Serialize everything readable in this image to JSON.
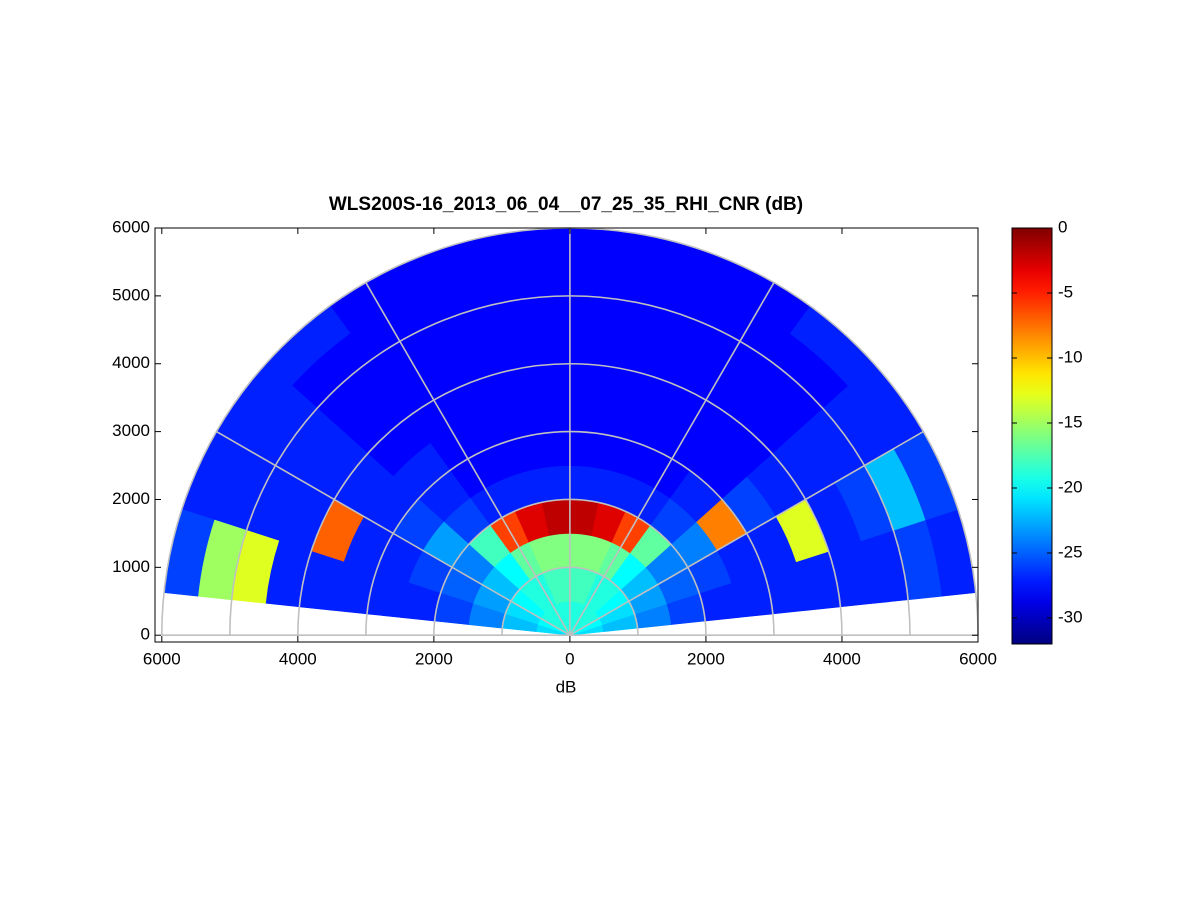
{
  "chart_data": {
    "type": "polar_heatmap",
    "title": "WLS200S-16_2013_06_04__07_25_35_RHI_CNR (dB)",
    "xlabel": "dB",
    "xlim": [
      -6100,
      6000
    ],
    "ylim": [
      -100,
      6000
    ],
    "xticks": [
      {
        "value": -6000,
        "label": "6000"
      },
      {
        "value": -4000,
        "label": "4000"
      },
      {
        "value": -2000,
        "label": "2000"
      },
      0,
      2000,
      4000,
      6000
    ],
    "yticks": [
      0,
      1000,
      2000,
      3000,
      4000,
      5000,
      6000
    ],
    "range_edges": [
      0,
      500,
      1000,
      1500,
      2000,
      2500,
      3000,
      3500,
      4000,
      4500,
      5000,
      5500,
      6000
    ],
    "angle_edges": [
      6,
      18,
      30,
      42,
      54,
      66,
      78,
      90,
      102,
      114,
      126,
      138,
      150,
      162,
      174
    ],
    "values": [
      [
        -21,
        -20,
        -19,
        -19,
        -19,
        -19,
        -19,
        -19,
        -19,
        -19,
        -19,
        -19,
        -20,
        -21
      ],
      [
        -22,
        -21,
        -20,
        -19,
        -19,
        -18,
        -18,
        -18,
        -18,
        -19,
        -19,
        -20,
        -21,
        -22
      ],
      [
        -24,
        -23,
        -22,
        -20,
        -17,
        -16,
        -16,
        -16,
        -16,
        -17,
        -20,
        -22,
        -23,
        -24
      ],
      [
        -26,
        -25,
        -24,
        -17,
        -6,
        -3,
        -2,
        -2,
        -3,
        -6,
        -18,
        -24,
        -25,
        -26
      ],
      [
        -27,
        -26,
        -24,
        -26,
        -27,
        -27,
        -27,
        -27,
        -27,
        -27,
        -26,
        -23,
        -26,
        -27
      ],
      [
        -27,
        -27,
        -8,
        -27,
        -28,
        -28,
        -28,
        -28,
        -28,
        -28,
        -27,
        -26,
        -27,
        -27
      ],
      [
        -27,
        -27,
        -26,
        -28,
        -28,
        -28,
        -28,
        -28,
        -28,
        -28,
        -27,
        -27,
        -27,
        -27
      ],
      [
        -27,
        -13,
        -27,
        -28,
        -28,
        -28,
        -28,
        -28,
        -28,
        -28,
        -28,
        -27,
        -7,
        -27
      ],
      [
        -27,
        -27,
        -27,
        -28,
        -28,
        -28,
        -28,
        -28,
        -28,
        -28,
        -28,
        -27,
        -27,
        -27
      ],
      [
        -27,
        -26,
        -27,
        -28,
        -28,
        -28,
        -28,
        -28,
        -28,
        -28,
        -28,
        -27,
        -27,
        -13
      ],
      [
        -26,
        -22,
        -27,
        -28,
        -28,
        -28,
        -28,
        -28,
        -28,
        -28,
        -28,
        -27,
        -27,
        -15
      ],
      [
        -27,
        -26,
        -27,
        -27,
        -28,
        -28,
        -28,
        -28,
        -28,
        -28,
        -27,
        -27,
        -27,
        -26
      ]
    ],
    "clim": [
      -32,
      0
    ],
    "cticks": [
      0,
      -5,
      -10,
      -15,
      -20,
      -25,
      -30
    ],
    "colormap": "jet",
    "rgrid": [
      1000,
      2000,
      3000,
      4000,
      5000,
      6000
    ],
    "thetagrid": [
      0,
      30,
      60,
      90,
      120,
      150,
      180
    ]
  }
}
